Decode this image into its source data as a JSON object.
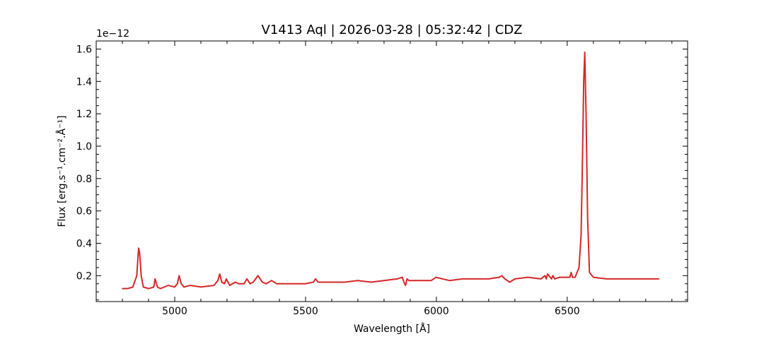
{
  "chart_data": {
    "type": "line",
    "title": "V1413 Aql | 2026-03-28 | 05:32:42 | CDZ",
    "xlabel": "Wavelength [Å]",
    "ylabel": "Flux [erg.s⁻¹.cm⁻².Å⁻¹]",
    "y_offset_label": "1e−12",
    "y_scale_exponent": -12,
    "xlim": [
      4700,
      6960
    ],
    "ylim": [
      0.04,
      1.65
    ],
    "x_ticks": [
      5000,
      5500,
      6000,
      6500
    ],
    "x_tick_labels": [
      "5000",
      "5500",
      "6000",
      "6500"
    ],
    "y_ticks": [
      0.2,
      0.4,
      0.6,
      0.8,
      1.0,
      1.2,
      1.4,
      1.6
    ],
    "y_tick_labels": [
      "0.2",
      "0.4",
      "0.6",
      "0.8",
      "1.0",
      "1.2",
      "1.4",
      "1.6"
    ],
    "grid": false,
    "series": [
      {
        "color": "#d62728",
        "x": [
          4800,
          4820,
          4840,
          4855,
          4862,
          4866,
          4872,
          4880,
          4900,
          4920,
          4925,
          4934,
          4945,
          4960,
          4975,
          5000,
          5010,
          5017,
          5025,
          5035,
          5060,
          5100,
          5150,
          5165,
          5172,
          5180,
          5190,
          5197,
          5210,
          5232,
          5245,
          5265,
          5276,
          5288,
          5300,
          5318,
          5335,
          5350,
          5370,
          5390,
          5420,
          5450,
          5500,
          5530,
          5538,
          5548,
          5600,
          5650,
          5700,
          5750,
          5800,
          5850,
          5870,
          5876,
          5882,
          5888,
          5895,
          5950,
          5980,
          5990,
          5998,
          6050,
          6100,
          6150,
          6200,
          6240,
          6250,
          6262,
          6280,
          6300,
          6350,
          6400,
          6415,
          6420,
          6425,
          6440,
          6445,
          6452,
          6470,
          6500,
          6510,
          6515,
          6520,
          6530,
          6545,
          6553,
          6558,
          6563,
          6567,
          6572,
          6578,
          6585,
          6600,
          6650,
          6700,
          6750,
          6800,
          6850
        ],
        "y": [
          0.12,
          0.12,
          0.13,
          0.2,
          0.37,
          0.34,
          0.2,
          0.13,
          0.12,
          0.13,
          0.18,
          0.13,
          0.12,
          0.13,
          0.14,
          0.13,
          0.15,
          0.2,
          0.15,
          0.13,
          0.14,
          0.13,
          0.14,
          0.17,
          0.21,
          0.16,
          0.15,
          0.18,
          0.14,
          0.16,
          0.15,
          0.15,
          0.18,
          0.15,
          0.16,
          0.2,
          0.16,
          0.15,
          0.17,
          0.15,
          0.15,
          0.15,
          0.15,
          0.16,
          0.18,
          0.16,
          0.16,
          0.16,
          0.17,
          0.16,
          0.17,
          0.18,
          0.19,
          0.16,
          0.14,
          0.18,
          0.17,
          0.17,
          0.17,
          0.18,
          0.19,
          0.17,
          0.18,
          0.18,
          0.18,
          0.19,
          0.2,
          0.18,
          0.16,
          0.18,
          0.19,
          0.18,
          0.2,
          0.18,
          0.21,
          0.18,
          0.2,
          0.18,
          0.19,
          0.19,
          0.19,
          0.22,
          0.19,
          0.19,
          0.25,
          0.45,
          0.9,
          1.4,
          1.58,
          1.2,
          0.55,
          0.22,
          0.19,
          0.18,
          0.18,
          0.18,
          0.18,
          0.18
        ]
      }
    ]
  }
}
